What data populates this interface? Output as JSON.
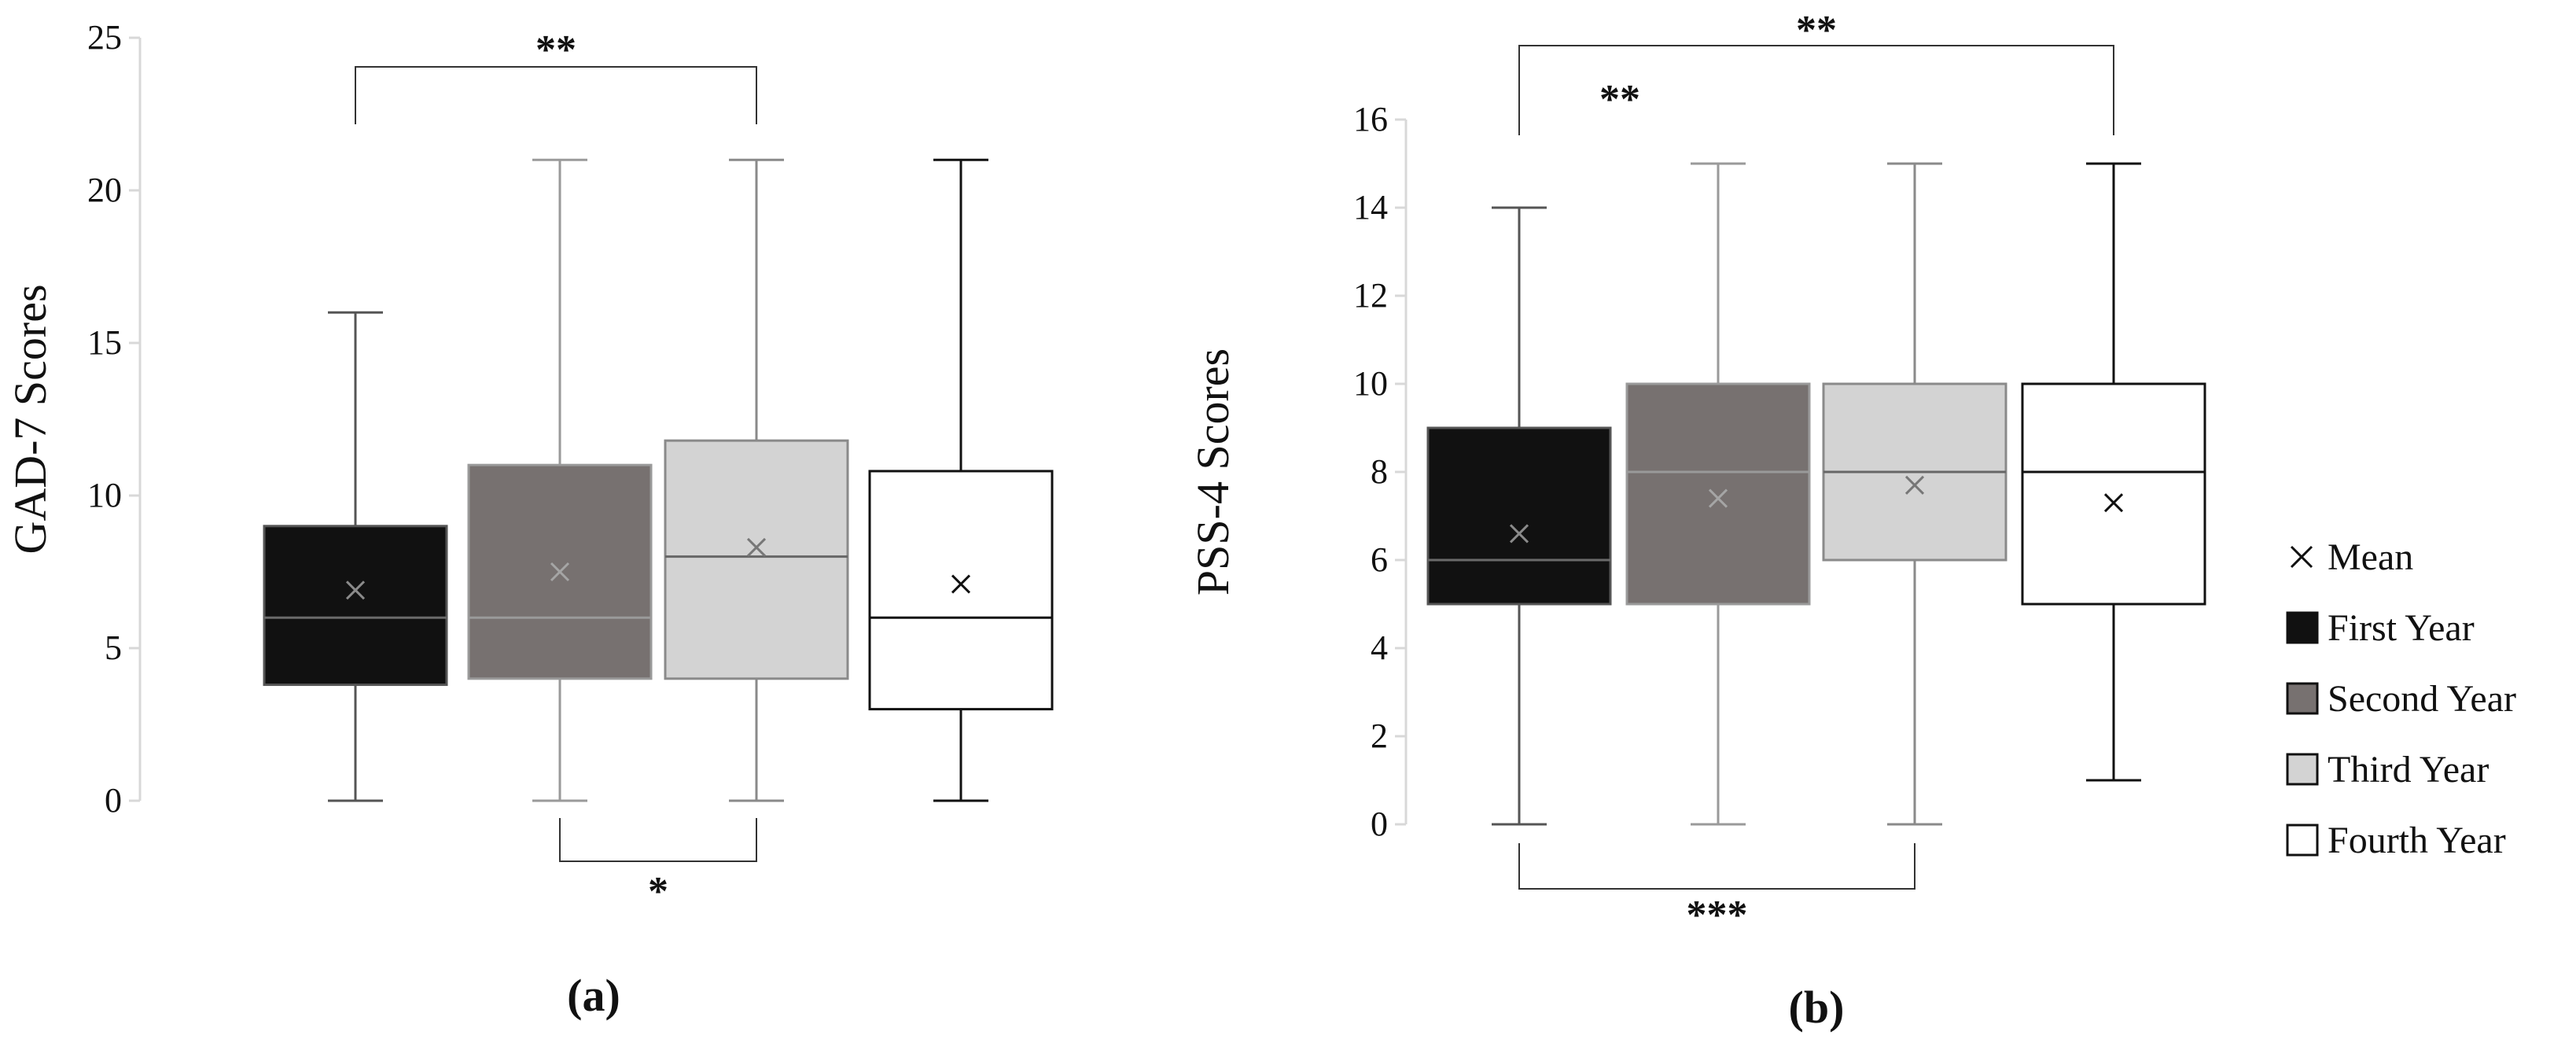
{
  "chart_data": [
    {
      "type": "box",
      "panel_label": "(a)",
      "ylabel": "GAD-7 Scores",
      "ylim": [
        0,
        25
      ],
      "yticks": [
        0,
        5,
        10,
        15,
        20,
        25
      ],
      "grid": false,
      "groups": [
        {
          "name": "First Year",
          "min": 0,
          "q1": 3.8,
          "median": 6,
          "q3": 9,
          "max": 16,
          "mean": 6.9
        },
        {
          "name": "Second Year",
          "min": 0,
          "q1": 4,
          "median": 6,
          "q3": 11,
          "max": 21,
          "mean": 7.5
        },
        {
          "name": "Third Year",
          "min": 0,
          "q1": 4,
          "median": 8,
          "q3": 11.8,
          "max": 21,
          "mean": 8.3
        },
        {
          "name": "Fourth Year",
          "min": 0,
          "q1": 3,
          "median": 6,
          "q3": 10.8,
          "max": 21,
          "mean": 7.1
        }
      ],
      "significance": [
        {
          "from": 0,
          "to": 2,
          "label": "**",
          "position": "above"
        },
        {
          "from": 1,
          "to": 2,
          "label": "*",
          "position": "below"
        }
      ]
    },
    {
      "type": "box",
      "panel_label": "(b)",
      "ylabel": "PSS-4 Scores",
      "ylim": [
        0,
        16
      ],
      "yticks": [
        0,
        2,
        4,
        6,
        8,
        10,
        12,
        14,
        16
      ],
      "grid": false,
      "groups": [
        {
          "name": "First Year",
          "min": 0,
          "q1": 5,
          "median": 6,
          "q3": 9,
          "max": 14,
          "mean": 6.6
        },
        {
          "name": "Second Year",
          "min": 0,
          "q1": 5,
          "median": 8,
          "q3": 10,
          "max": 15,
          "mean": 7.4
        },
        {
          "name": "Third Year",
          "min": 0,
          "q1": 6,
          "median": 8,
          "q3": 10,
          "max": 15,
          "mean": 7.7
        },
        {
          "name": "Fourth Year",
          "min": 1,
          "q1": 5,
          "median": 8,
          "q3": 10,
          "max": 15,
          "mean": 7.3
        }
      ],
      "significance": [
        {
          "from": 0,
          "to": 3,
          "label": "**",
          "position": "above"
        },
        {
          "from": 0,
          "to": 1,
          "label": "**",
          "position": "above-floating"
        },
        {
          "from": 0,
          "to": 2,
          "label": "***",
          "position": "below"
        }
      ]
    }
  ],
  "legend": {
    "placement": "right",
    "mean_label": "Mean",
    "mean_symbol": "×",
    "items": [
      {
        "label": "First Year",
        "color": "#111111"
      },
      {
        "label": "Second Year",
        "color": "#777170"
      },
      {
        "label": "Third Year",
        "color": "#d3d3d3"
      },
      {
        "label": "Fourth Year",
        "color": "#ffffff"
      }
    ]
  },
  "styles": {
    "group_fills": [
      "#111111",
      "#777170",
      "#d3d3d3",
      "#ffffff"
    ],
    "group_strokes": [
      "#555555",
      "#9a9a9a",
      "#8a8a8a",
      "#111111"
    ],
    "median_colors": [
      "#6a6a6a",
      "#9a9a9a",
      "#666666",
      "#111111"
    ],
    "mean_colors": [
      "#8a8a8a",
      "#a5a5a5",
      "#777777",
      "#111111"
    ],
    "whisker_colors": [
      "#555555",
      "#9a9a9a",
      "#8a8a8a",
      "#111111"
    ]
  }
}
